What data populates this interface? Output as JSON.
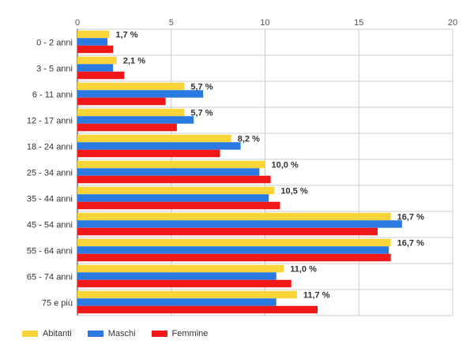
{
  "chart_data": {
    "type": "bar",
    "orientation": "horizontal",
    "categories": [
      "0 - 2 anni",
      "3 - 5 anni",
      "6 - 11 anni",
      "12 - 17 anni",
      "18 - 24 anni",
      "25 - 34 anni",
      "35 - 44 anni",
      "45 - 54 anni",
      "55 - 64 anni",
      "65 - 74 anni",
      "75 e più"
    ],
    "series": [
      {
        "name": "Abitanti",
        "color": "#f9d53a",
        "values": [
          1.7,
          2.1,
          5.7,
          5.7,
          8.2,
          10.0,
          10.5,
          16.7,
          16.7,
          11.0,
          11.7
        ]
      },
      {
        "name": "Maschi",
        "color": "#2a7ae2",
        "values": [
          1.6,
          1.9,
          6.7,
          6.2,
          8.7,
          9.7,
          10.2,
          17.3,
          16.6,
          10.6,
          10.6
        ]
      },
      {
        "name": "Femmine",
        "color": "#f01818",
        "values": [
          1.9,
          2.5,
          4.7,
          5.3,
          7.6,
          10.3,
          10.8,
          16.0,
          16.7,
          11.4,
          12.8
        ]
      }
    ],
    "data_labels": [
      "1,7 %",
      "2,1 %",
      "5,7 %",
      "5,7 %",
      "8,2 %",
      "10,0 %",
      "10,5 %",
      "16,7 %",
      "16,7 %",
      "11,0 %",
      "11,7 %"
    ],
    "x_ticks": [
      "0",
      "5",
      "10",
      "15",
      "20"
    ],
    "xlim": [
      0,
      20
    ],
    "grid": true,
    "legend_position": "bottom-left"
  }
}
